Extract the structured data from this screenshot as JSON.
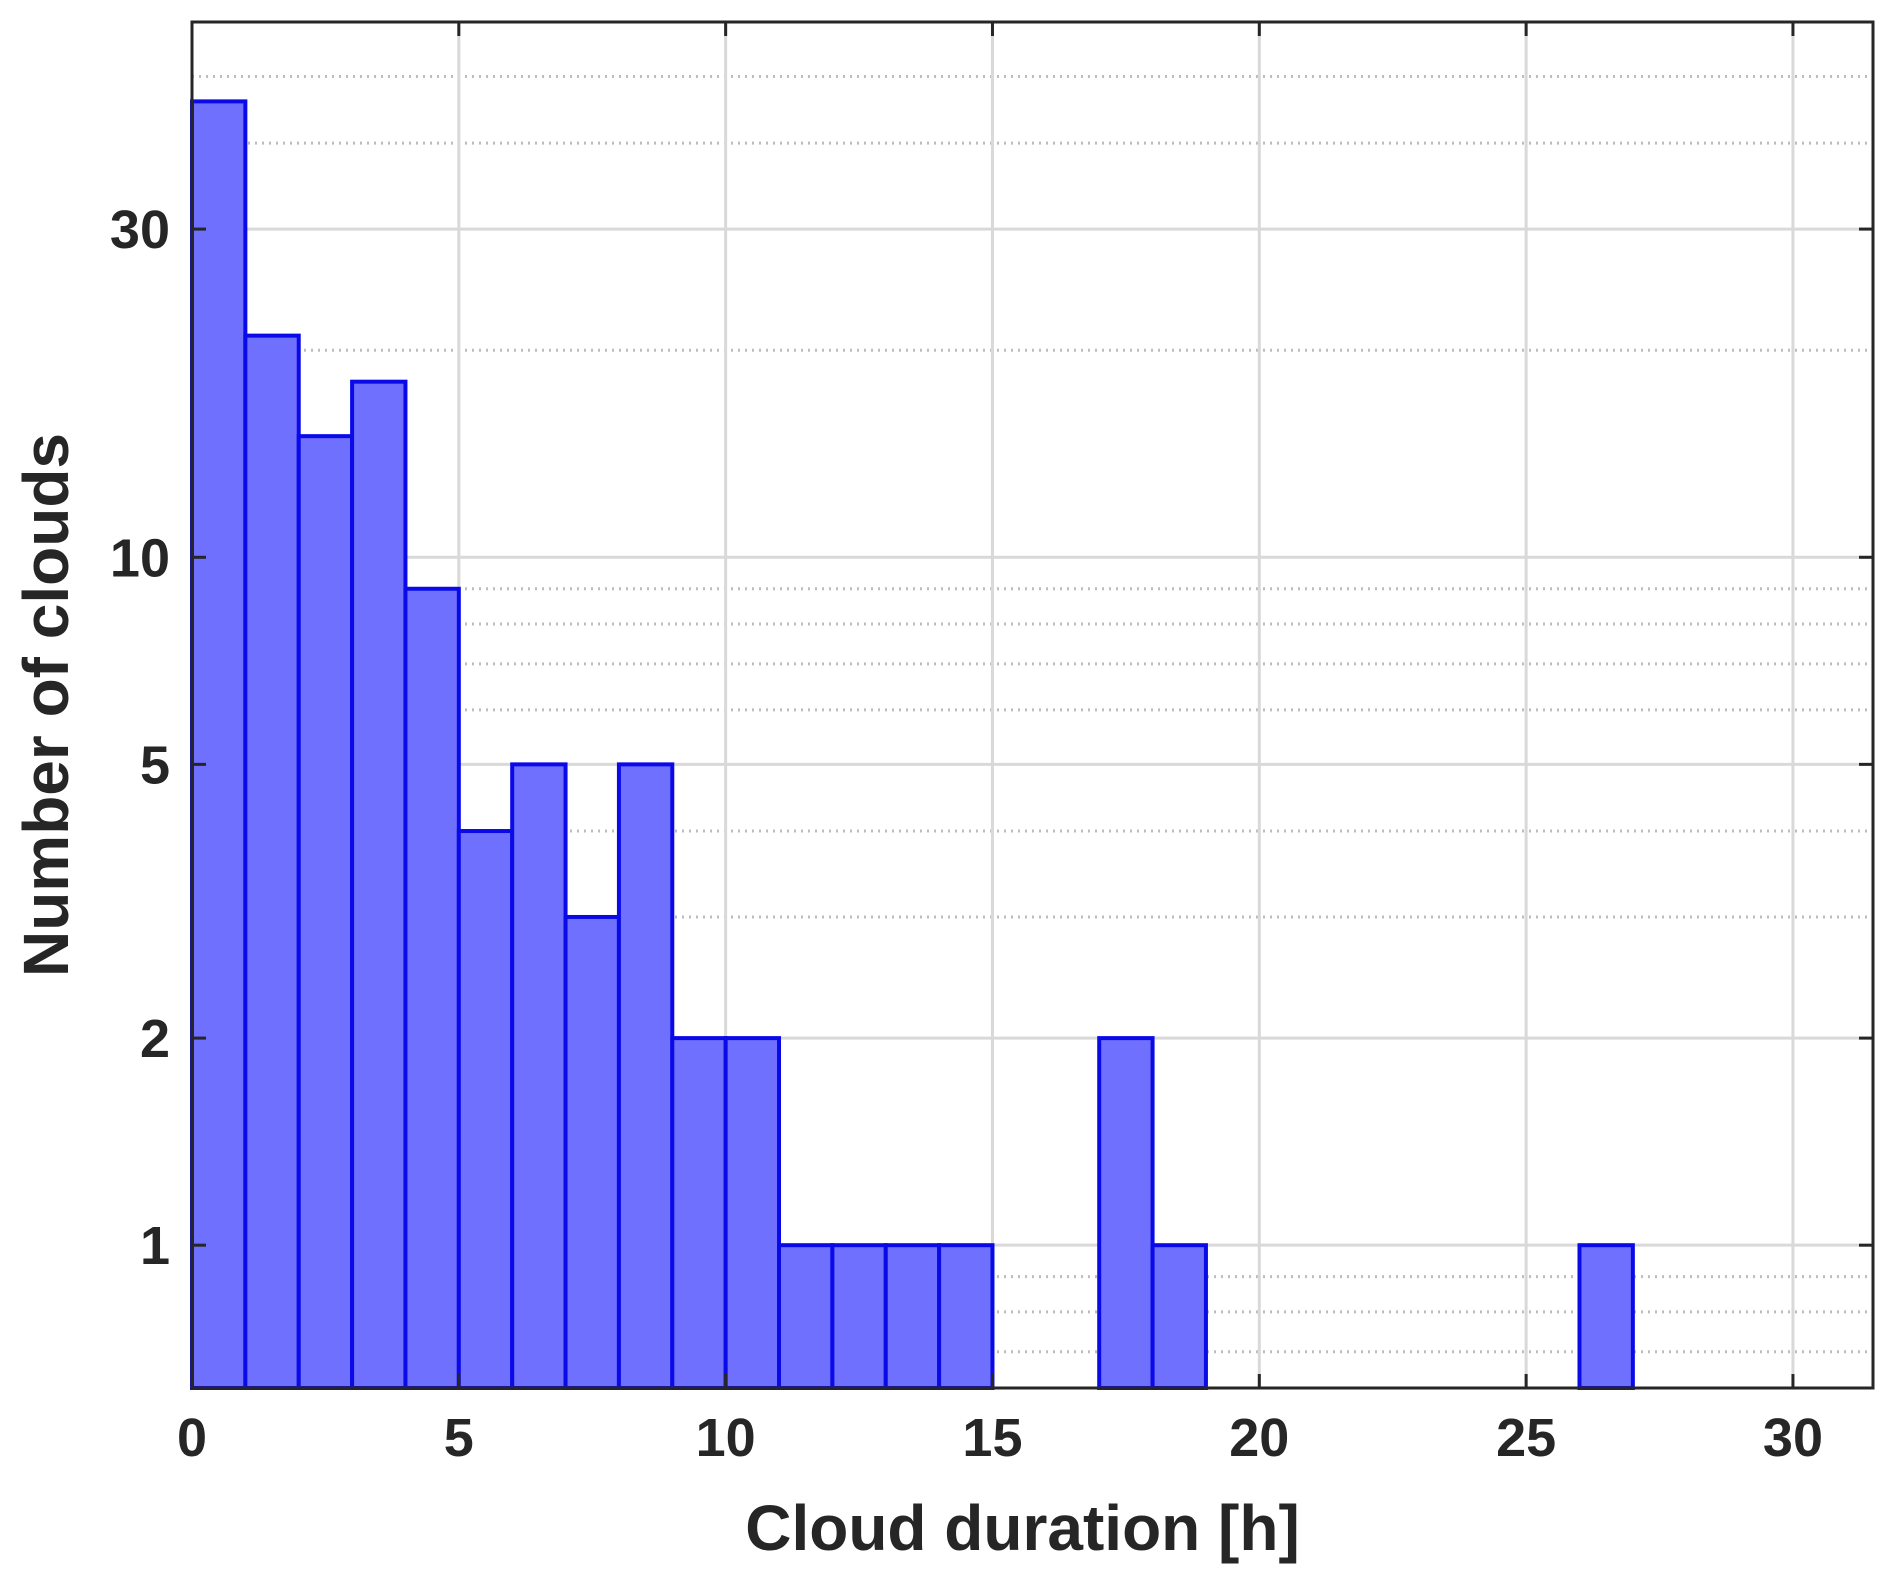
{
  "chart_data": {
    "type": "bar",
    "title": "",
    "xlabel": "Cloud duration [h]",
    "ylabel": "Number of clouds",
    "y_scale": "log",
    "xlim": [
      0,
      31.5
    ],
    "ylim": [
      0.62,
      60
    ],
    "x_ticks": [
      0,
      5,
      10,
      15,
      20,
      25,
      30
    ],
    "x_tick_labels": [
      "0",
      "5",
      "10",
      "15",
      "20",
      "25",
      "30"
    ],
    "y_ticks": [
      1,
      2,
      5,
      10,
      30
    ],
    "y_tick_labels": [
      "1",
      "2",
      "5",
      "10",
      "30"
    ],
    "grid": true,
    "bin_width": 1,
    "bins": [
      {
        "x": 0,
        "value": 46
      },
      {
        "x": 1,
        "value": 21
      },
      {
        "x": 2,
        "value": 15
      },
      {
        "x": 3,
        "value": 18
      },
      {
        "x": 4,
        "value": 9
      },
      {
        "x": 5,
        "value": 4
      },
      {
        "x": 6,
        "value": 5
      },
      {
        "x": 7,
        "value": 3
      },
      {
        "x": 8,
        "value": 5
      },
      {
        "x": 9,
        "value": 2
      },
      {
        "x": 10,
        "value": 2
      },
      {
        "x": 11,
        "value": 1
      },
      {
        "x": 12,
        "value": 1
      },
      {
        "x": 13,
        "value": 1
      },
      {
        "x": 14,
        "value": 1
      },
      {
        "x": 17,
        "value": 2
      },
      {
        "x": 18,
        "value": 1
      },
      {
        "x": 26,
        "value": 1
      }
    ],
    "colors": {
      "bar_fill": "#7070ff",
      "bar_edge": "#0a0ae8",
      "axes": "#262626",
      "grid": "#d9d9d9"
    }
  }
}
